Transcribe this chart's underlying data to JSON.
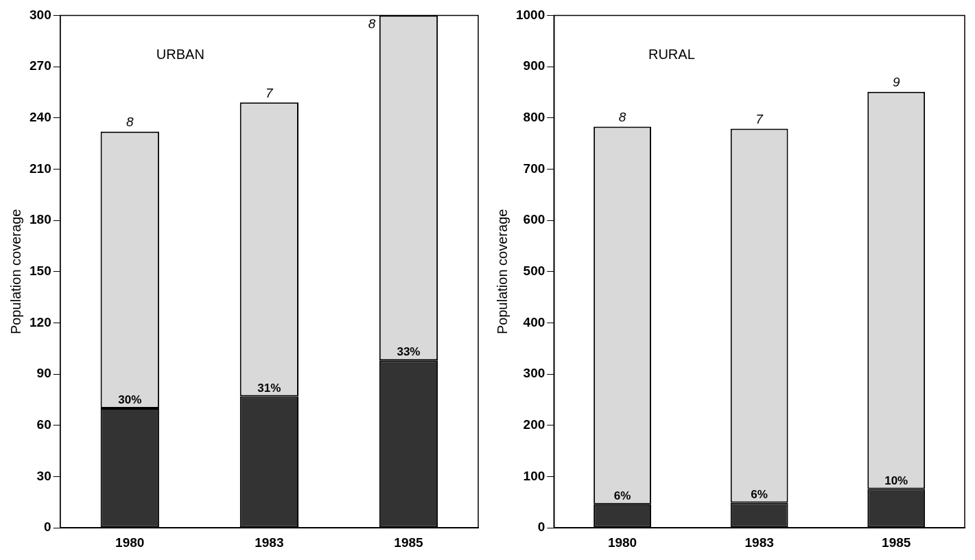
{
  "chart_data": [
    {
      "type": "bar",
      "title": "URBAN",
      "ylabel": "Population coverage",
      "categories": [
        "1980",
        "1983",
        "1985"
      ],
      "stacked": true,
      "ylim": [
        0,
        300
      ],
      "yticks": [
        0,
        30,
        60,
        90,
        120,
        150,
        180,
        210,
        240,
        270,
        300
      ],
      "grid": false,
      "legend": false,
      "series": [
        {
          "color": "#333333",
          "values": [
            70,
            77,
            98
          ]
        },
        {
          "color": "#d9d9d9",
          "values": [
            162,
            172,
            202
          ]
        }
      ],
      "annotations": [
        {
          "text": "8",
          "x": "1980",
          "y": 232
        },
        {
          "text": "7",
          "x": "1983",
          "y": 249
        },
        {
          "text": "8",
          "x": "1985",
          "y": 300
        },
        {
          "text": "30%",
          "x": "1980",
          "y": 70
        },
        {
          "text": "31%",
          "x": "1983",
          "y": 77
        },
        {
          "text": "33%",
          "x": "1985",
          "y": 98
        }
      ]
    },
    {
      "type": "bar",
      "title": "RURAL",
      "ylabel": "Population coverage",
      "categories": [
        "1980",
        "1983",
        "1985"
      ],
      "stacked": true,
      "ylim": [
        0,
        1000
      ],
      "yticks": [
        0,
        100,
        200,
        300,
        400,
        500,
        600,
        700,
        800,
        900,
        1000
      ],
      "grid": false,
      "legend": false,
      "series": [
        {
          "color": "#333333",
          "values": [
            46,
            49,
            76
          ]
        },
        {
          "color": "#d9d9d9",
          "values": [
            737,
            730,
            775
          ]
        }
      ],
      "annotations": [
        {
          "text": "8",
          "x": "1980",
          "y": 783
        },
        {
          "text": "7",
          "x": "1983",
          "y": 779
        },
        {
          "text": "9",
          "x": "1985",
          "y": 851
        },
        {
          "text": "6%",
          "x": "1980",
          "y": 46
        },
        {
          "text": "6%",
          "x": "1983",
          "y": 49
        },
        {
          "text": "10%",
          "x": "1985",
          "y": 76
        }
      ]
    }
  ]
}
